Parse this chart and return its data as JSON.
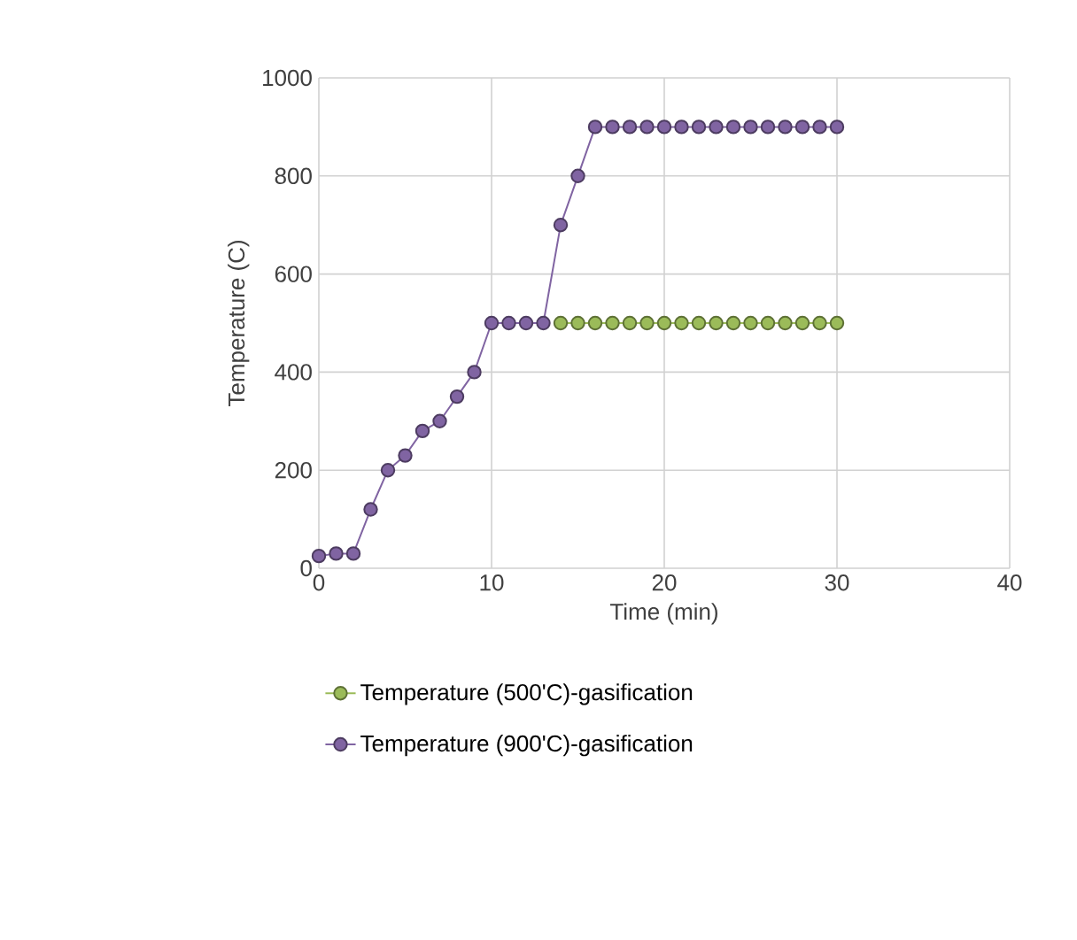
{
  "chart_data": {
    "type": "line",
    "xlabel": "Time (min)",
    "ylabel": "Temperature (C)",
    "x": [
      0,
      1,
      2,
      3,
      4,
      5,
      6,
      7,
      8,
      9,
      10,
      11,
      12,
      13,
      14,
      15,
      16,
      17,
      18,
      19,
      20,
      21,
      22,
      23,
      24,
      25,
      26,
      27,
      28,
      29,
      30
    ],
    "series": [
      {
        "name": "Temperature (500'C)-gasification",
        "color": "#9bbb59",
        "x": [
          14,
          15,
          16,
          17,
          18,
          19,
          20,
          21,
          22,
          23,
          24,
          25,
          26,
          27,
          28,
          29,
          30
        ],
        "values": [
          500,
          500,
          500,
          500,
          500,
          500,
          500,
          500,
          500,
          500,
          500,
          500,
          500,
          500,
          500,
          500,
          500
        ]
      },
      {
        "name": "Temperature (900'C)-gasification",
        "color": "#8064a2",
        "values": [
          25,
          30,
          30,
          120,
          200,
          230,
          280,
          300,
          350,
          400,
          500,
          500,
          500,
          500,
          700,
          800,
          900,
          900,
          900,
          900,
          900,
          900,
          900,
          900,
          900,
          900,
          900,
          900,
          900,
          900,
          900
        ]
      }
    ],
    "xlim": [
      0,
      40
    ],
    "xticks": [
      0,
      10,
      20,
      30,
      40
    ],
    "ylim": [
      0,
      1000
    ],
    "yticks": [
      0,
      200,
      400,
      600,
      800,
      1000
    ],
    "grid": true,
    "legend": "bottom",
    "marker": "circle",
    "line_style": "solid"
  }
}
